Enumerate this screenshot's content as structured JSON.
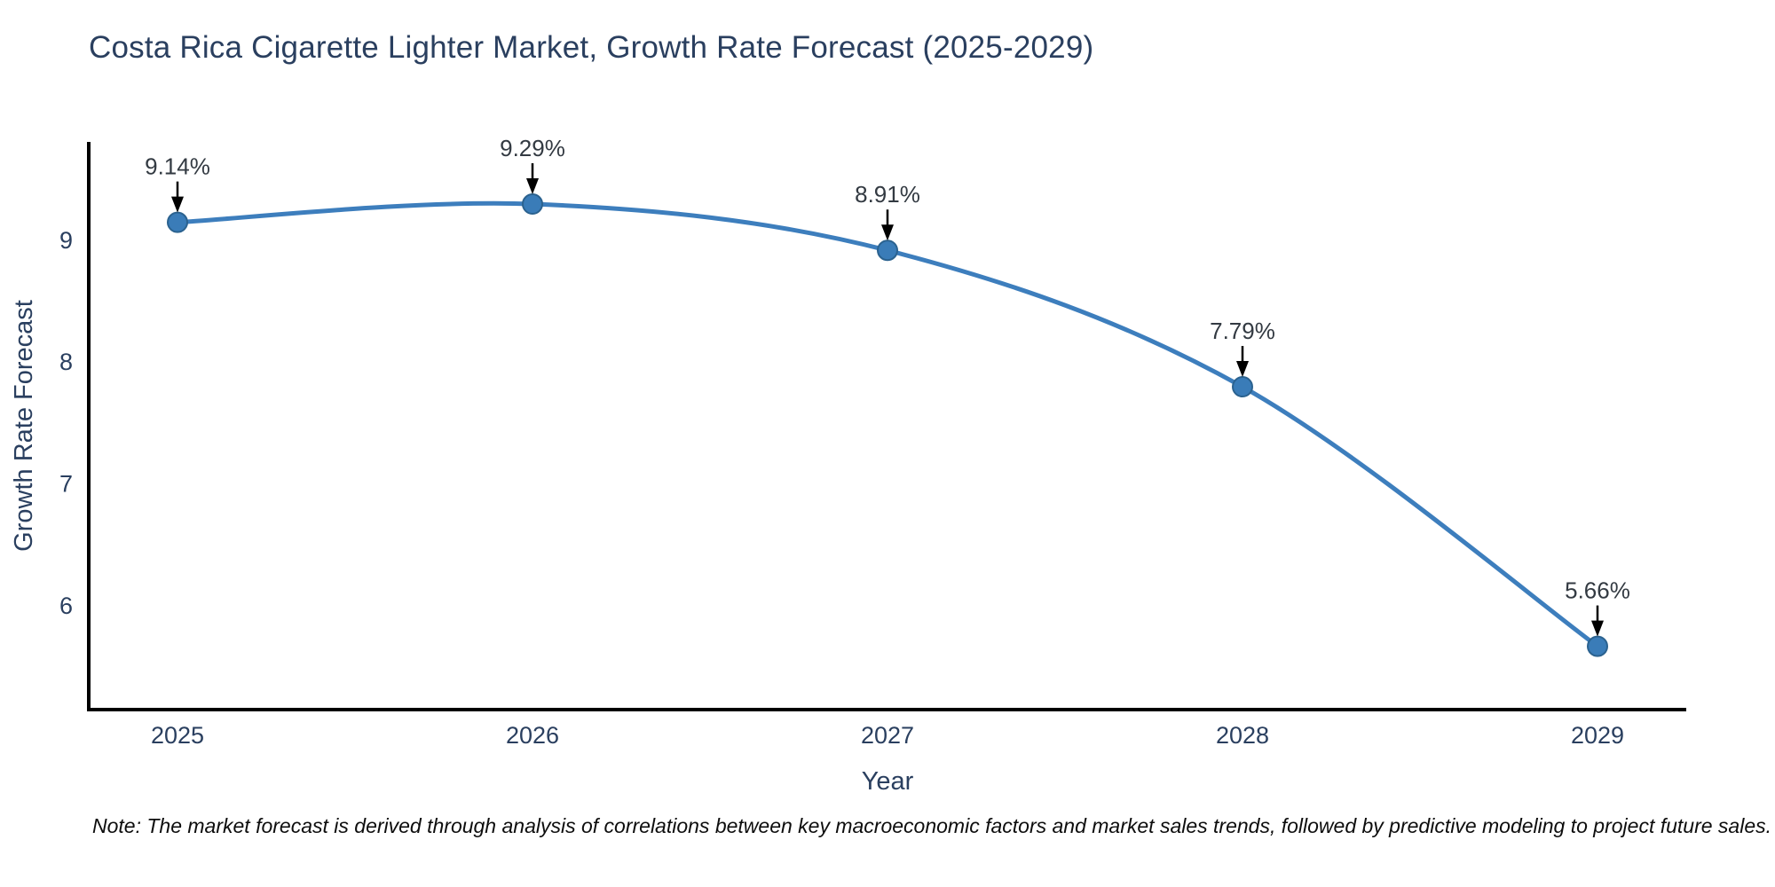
{
  "figure": {
    "note": "Note: The market forecast is derived through analysis of correlations between key macroeconomic factors and market sales trends, followed by predictive modeling to project future sales."
  },
  "chart_data": {
    "type": "line",
    "title": "Costa Rica Cigarette Lighter Market, Growth Rate Forecast (2025-2029)",
    "xlabel": "Year",
    "ylabel": "Growth Rate Forecast",
    "x": [
      2025,
      2026,
      2027,
      2028,
      2029
    ],
    "series": [
      {
        "name": "Growth Rate Forecast",
        "values": [
          9.14,
          9.29,
          8.91,
          7.79,
          5.66
        ],
        "labels": [
          "9.14%",
          "9.29%",
          "8.91%",
          "7.79%",
          "5.66%"
        ]
      }
    ],
    "xtick_labels": [
      "2025",
      "2026",
      "2027",
      "2028",
      "2029"
    ],
    "yticks": [
      6,
      7,
      8,
      9
    ],
    "xlim": [
      2024.75,
      2029.25
    ],
    "ylim": [
      5.14,
      9.8
    ],
    "grid": false,
    "legend": "none",
    "line_shape": "spline",
    "annotation_arrows": true,
    "colors": {
      "line": "#3d7ebd",
      "marker": "#3a7cb8",
      "marker_edge": "#2b628f",
      "axis": "#000000",
      "text": "#2a3f5f",
      "annotation_text": "#333a42",
      "arrow": "#000000",
      "background": "#ffffff"
    }
  }
}
